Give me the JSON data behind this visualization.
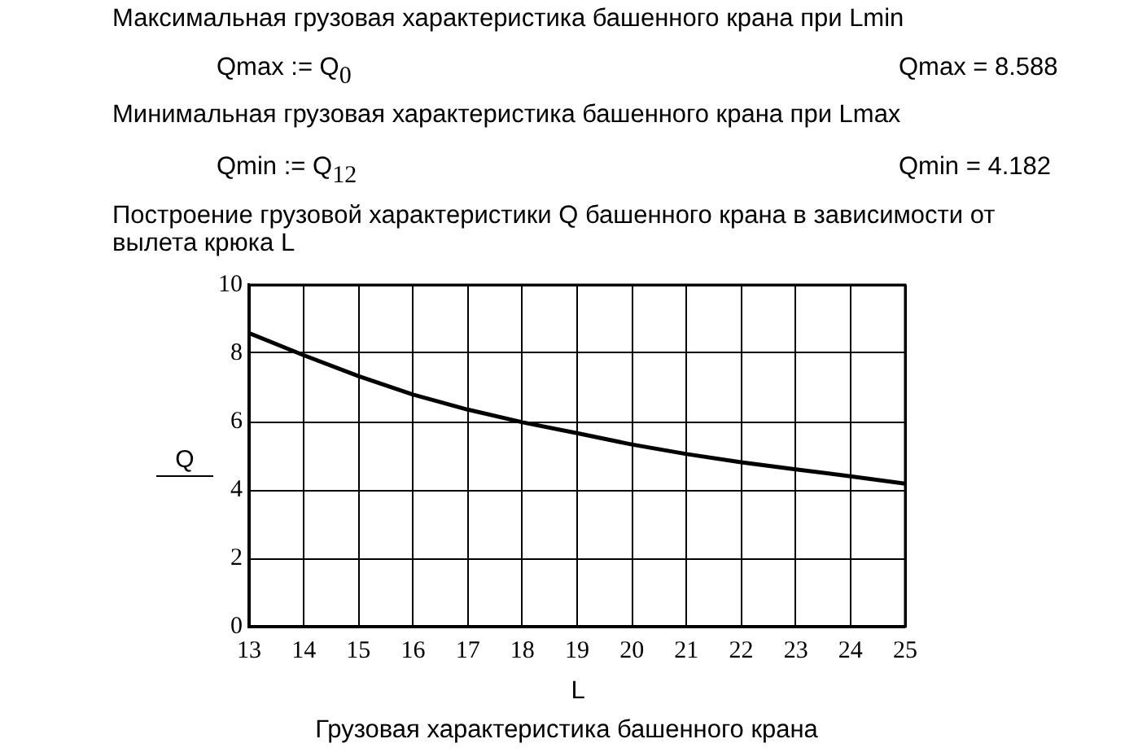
{
  "chart_data": {
    "type": "line",
    "annotations": [
      "Максимальная грузовая характеристика башенного крана при Lmin",
      "Qmax := Q$_{0}$",
      "Qmax = 8.588",
      "Минимальная грузовая характеристика башенного крана при Lmax",
      "Qmin := Q$_{12}$",
      "Qmin = 4.182",
      "Построение грузовой характеристики Q башенного крана в зависимости от вылета крюка L",
      "Грузовая характеристика башенного крана"
    ],
    "xlabel": "L",
    "x": [
      13,
      14,
      15,
      16,
      17,
      18,
      19,
      20,
      21,
      22,
      23,
      24,
      25
    ],
    "series": [
      {
        "name": "Q",
        "color": "#000000",
        "values": [
          8.588,
          7.94,
          7.33,
          6.79,
          6.35,
          5.98,
          5.66,
          5.33,
          5.05,
          4.81,
          4.6,
          4.4,
          4.182
        ]
      }
    ],
    "xlim": [
      13,
      25
    ],
    "xticks": [
      13,
      14,
      15,
      16,
      17,
      18,
      19,
      20,
      21,
      22,
      23,
      24,
      25
    ],
    "ylim": [
      0,
      10
    ],
    "yticks": [
      0,
      2,
      4,
      6,
      8,
      10
    ],
    "grid": true,
    "legend": "left",
    "line_style": "solid"
  }
}
